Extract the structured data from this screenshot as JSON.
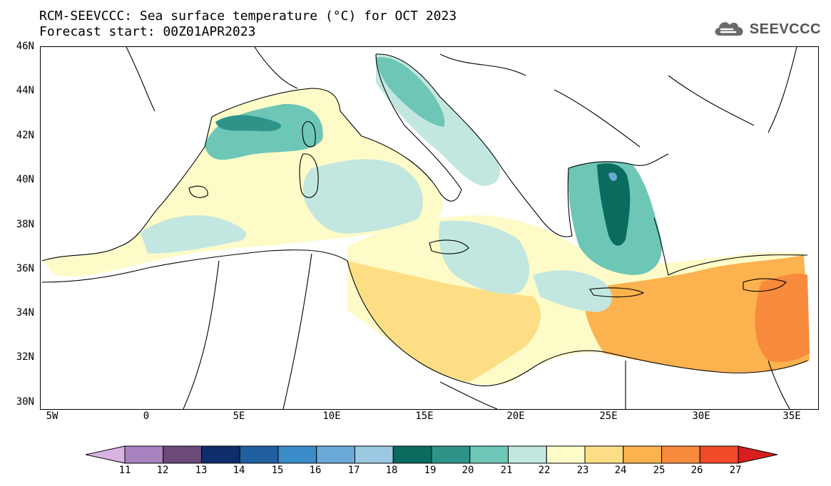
{
  "title": {
    "line1": "RCM-SEEVCCC: Sea surface temperature (°C) for OCT 2023",
    "line2": "Forecast start: 00Z01APR2023"
  },
  "logo": {
    "text": "SEEVCCC",
    "icon": "cloud-icon",
    "color": "#6b6b6b"
  },
  "map": {
    "variable": "Sea surface temperature",
    "units": "°C",
    "lat_labels": [
      "46N",
      "44N",
      "42N",
      "40N",
      "38N",
      "36N",
      "34N",
      "32N",
      "30N"
    ],
    "lon_labels": [
      "5W",
      "0",
      "5E",
      "10E",
      "15E",
      "20E",
      "25E",
      "30E",
      "35E"
    ],
    "lat_range": [
      30,
      46
    ],
    "lon_range": [
      -6,
      36.2
    ]
  },
  "colorbar": {
    "labels": [
      "11",
      "12",
      "13",
      "14",
      "15",
      "16",
      "17",
      "18",
      "19",
      "20",
      "21",
      "22",
      "23",
      "24",
      "25",
      "26",
      "27"
    ],
    "colors": [
      "#d8b4e2",
      "#a883c0",
      "#6b4a78",
      "#0e2d6b",
      "#1f5fa0",
      "#3a8cc8",
      "#6aa9d6",
      "#9dc8e2",
      "#0b6b5e",
      "#2e9489",
      "#6dc6b6",
      "#c2e7e0",
      "#fdfbc8",
      "#fdde85",
      "#fcb24e",
      "#f88a3c",
      "#f04a2a",
      "#d81e1e"
    ]
  }
}
